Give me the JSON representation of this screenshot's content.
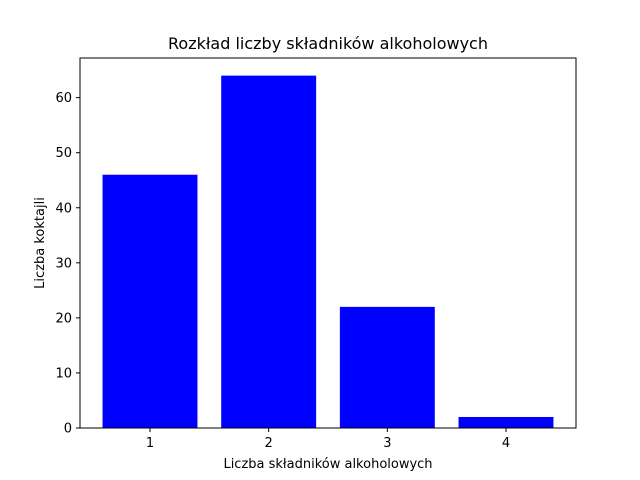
{
  "chart_data": {
    "type": "bar",
    "title": "Rozkład liczby składników alkoholowych",
    "xlabel": "Liczba składników alkoholowych",
    "ylabel": "Liczba koktajli",
    "categories": [
      "1",
      "2",
      "3",
      "4"
    ],
    "values": [
      46,
      64,
      22,
      2
    ],
    "ylim": [
      0,
      67.2
    ],
    "yticks": [
      0,
      10,
      20,
      30,
      40,
      50,
      60
    ],
    "ytick_labels": [
      "0",
      "10",
      "20",
      "30",
      "40",
      "50",
      "60"
    ],
    "bar_color": "#0000ff",
    "grid": false,
    "legend": false
  }
}
